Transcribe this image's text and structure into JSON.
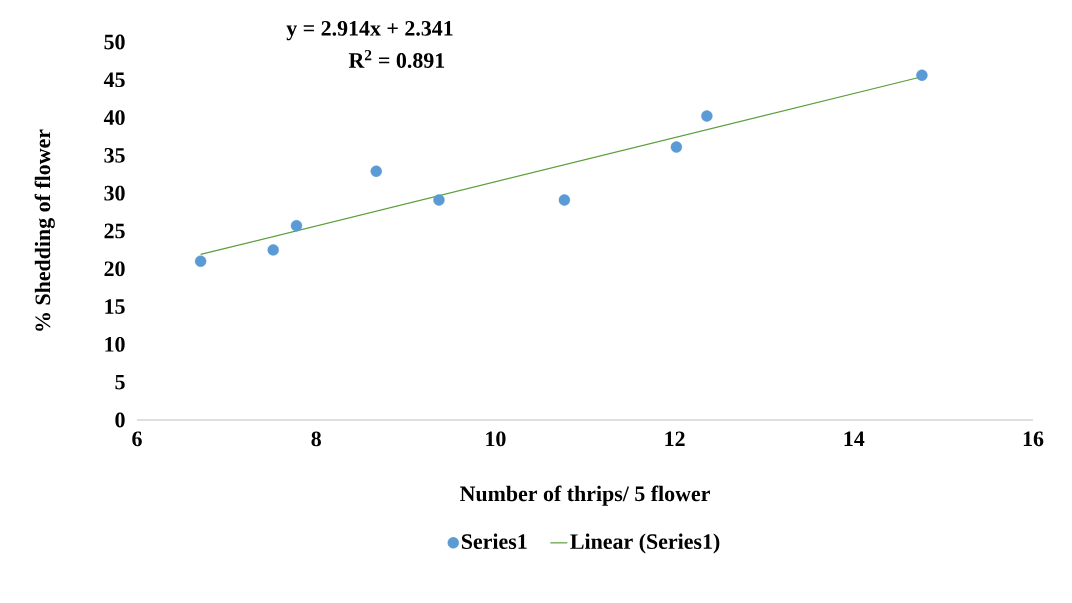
{
  "chart_data": {
    "type": "scatter",
    "xlabel": "Number of thrips/ 5 flower",
    "ylabel": "% Shedding of flower",
    "annotations": [
      "y = 2.914x + 2.341",
      "R$^{2}$ = 0.891"
    ],
    "xlim": [
      6,
      16
    ],
    "xticks": [
      6,
      8,
      10,
      12,
      14,
      16
    ],
    "ylim": [
      0,
      50
    ],
    "yticks": [
      0,
      5,
      10,
      15,
      20,
      25,
      30,
      35,
      40,
      45,
      50
    ],
    "grid": false,
    "legend": "bottom",
    "marker": "circle",
    "series": [
      {
        "name": "Series1",
        "color": "#5b9bd5",
        "x": [
          6.71,
          7.52,
          7.78,
          8.67,
          9.37,
          10.77,
          12.02,
          12.36,
          14.76
        ],
        "values": [
          21.0,
          22.5,
          25.7,
          32.9,
          29.1,
          29.1,
          36.1,
          40.2,
          45.6
        ]
      },
      {
        "name": "Linear (Series1)",
        "type": "line",
        "color": "#5a9e3a",
        "marker": "none",
        "line_style": "solid",
        "x": [
          6.71,
          14.76
        ],
        "values": [
          21.9,
          45.4
        ]
      }
    ]
  }
}
